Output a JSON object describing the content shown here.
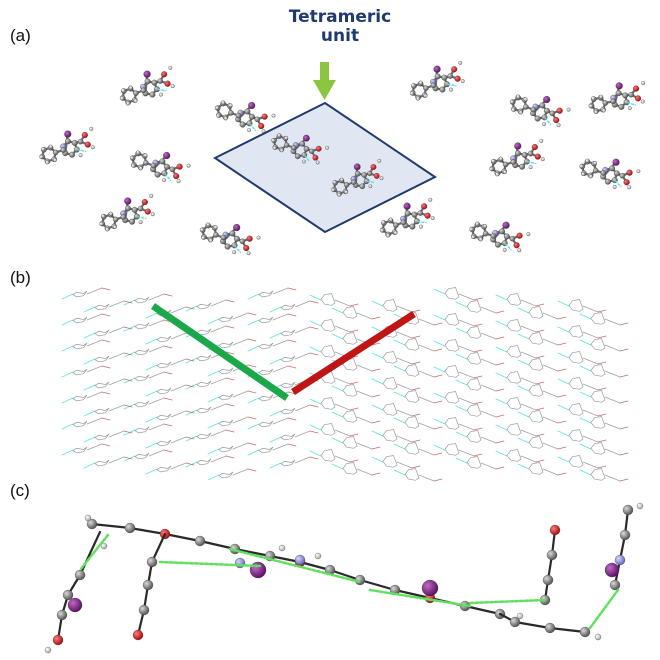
{
  "panels": [
    {
      "label": "(a)"
    },
    {
      "label": "(b)"
    },
    {
      "label": "(c)"
    }
  ],
  "callout": {
    "line1": "Tetrameric",
    "line2": "unit"
  },
  "colors": {
    "carbon": "#7a7a7a",
    "hydrogen": "#d8d8d8",
    "oxygen": "#cc1a1a",
    "nitrogen": "#8d8ee0",
    "iodine": "#8a1f8f",
    "hbond": "#55e3e0",
    "halogen_contact": "#5fe05f",
    "highlight_border": "#1f3a6e",
    "highlight_fill": "#c8d2ea",
    "arrow": "#8cc63f",
    "direction_green": "#1aa84a",
    "direction_red": "#c01515",
    "callout_text": "#1f3a6e"
  }
}
